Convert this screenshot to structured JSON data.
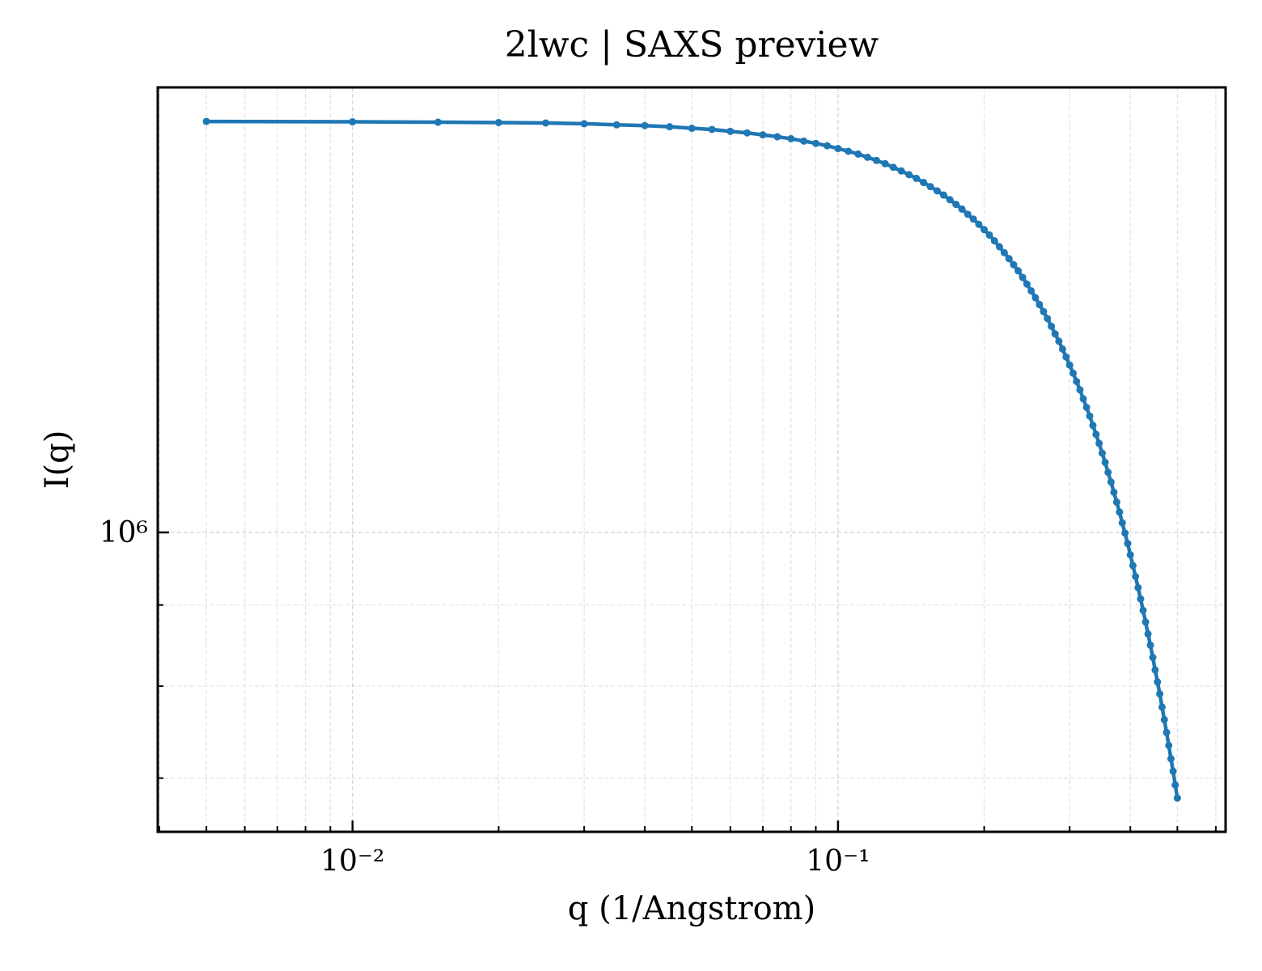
{
  "chart_data": {
    "type": "line",
    "title": "2lwc | SAXS preview",
    "xlabel": "q (1/Angstrom)",
    "ylabel": "I(q)",
    "xscale": "log",
    "yscale": "log",
    "grid": true,
    "xlim": [
      0.00397,
      0.6285
    ],
    "ylim": [
      647500,
      1908000
    ],
    "xticks": [
      {
        "value": 0.01,
        "label": "10⁻²"
      },
      {
        "value": 0.1,
        "label": "10⁻¹"
      }
    ],
    "yticks": [
      {
        "value": 1000000,
        "label": "10⁶"
      }
    ],
    "xticks_minor": [
      0.004,
      0.005,
      0.006,
      0.007,
      0.008,
      0.009,
      0.02,
      0.03,
      0.04,
      0.05,
      0.06,
      0.07,
      0.08,
      0.09,
      0.2,
      0.3,
      0.4,
      0.5,
      0.6
    ],
    "yticks_minor": [
      700000,
      800000,
      900000
    ],
    "x": [
      0.005,
      0.01,
      0.015,
      0.02,
      0.025,
      0.03,
      0.035,
      0.04,
      0.045,
      0.05,
      0.055,
      0.06,
      0.065,
      0.07,
      0.075,
      0.08,
      0.085,
      0.09,
      0.095,
      0.1,
      0.105,
      0.11,
      0.115,
      0.12,
      0.125,
      0.13,
      0.135,
      0.14,
      0.145,
      0.15,
      0.155,
      0.16,
      0.165,
      0.17,
      0.175,
      0.18,
      0.185,
      0.19,
      0.195,
      0.2,
      0.205,
      0.21,
      0.215,
      0.22,
      0.225,
      0.23,
      0.235,
      0.24,
      0.245,
      0.25,
      0.255,
      0.26,
      0.265,
      0.27,
      0.275,
      0.28,
      0.285,
      0.29,
      0.295,
      0.3,
      0.305,
      0.31,
      0.315,
      0.32,
      0.325,
      0.33,
      0.335,
      0.34,
      0.345,
      0.35,
      0.355,
      0.36,
      0.365,
      0.37,
      0.375,
      0.38,
      0.385,
      0.39,
      0.395,
      0.4,
      0.405,
      0.41,
      0.415,
      0.42,
      0.425,
      0.43,
      0.435,
      0.44,
      0.445,
      0.45,
      0.455,
      0.46,
      0.465,
      0.47,
      0.475,
      0.48,
      0.485,
      0.49,
      0.495,
      0.5
    ],
    "series": [
      {
        "color": "#1f77b4",
        "values": [
          1816000,
          1815000,
          1814000,
          1813000,
          1812000,
          1810000,
          1807000,
          1805000,
          1802000,
          1798000,
          1795000,
          1790000,
          1786000,
          1781000,
          1776000,
          1771000,
          1765000,
          1759000,
          1753000,
          1746000,
          1739000,
          1732000,
          1724000,
          1716000,
          1708000,
          1699000,
          1690000,
          1681000,
          1672000,
          1662000,
          1652000,
          1642000,
          1632000,
          1621000,
          1610000,
          1599000,
          1587000,
          1576000,
          1564000,
          1552000,
          1540000,
          1527000,
          1514000,
          1501000,
          1488000,
          1475000,
          1462000,
          1448000,
          1434000,
          1420000,
          1406000,
          1392000,
          1378000,
          1364000,
          1349000,
          1334000,
          1320000,
          1305000,
          1290000,
          1275000,
          1260000,
          1245000,
          1230000,
          1214000,
          1199000,
          1184000,
          1168000,
          1153000,
          1138000,
          1122000,
          1107000,
          1091000,
          1076000,
          1060000,
          1045000,
          1030000,
          1014000,
          999000,
          984000,
          968000,
          953000,
          938000,
          923000,
          908000,
          893000,
          878000,
          863000,
          849000,
          834000,
          819000,
          805000,
          791000,
          776000,
          762000,
          748000,
          734000,
          720000,
          707000,
          693000,
          680000
        ]
      }
    ]
  }
}
